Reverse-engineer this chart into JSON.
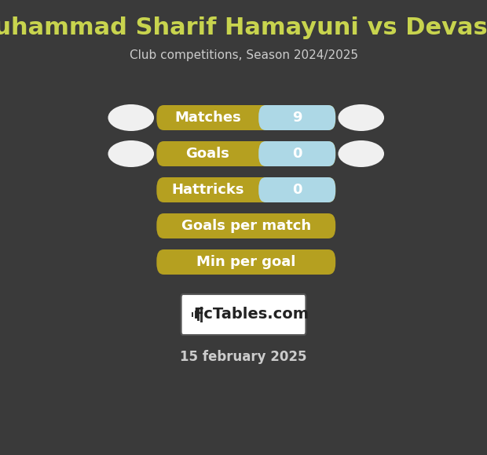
{
  "title": "Muhammad Sharif Hamayuni vs Devassy",
  "subtitle": "Club competitions, Season 2024/2025",
  "date_label": "15 february 2025",
  "background_color": "#3a3a3a",
  "title_color": "#c8d44e",
  "subtitle_color": "#cccccc",
  "date_color": "#cccccc",
  "rows": [
    {
      "label": "Matches",
      "value": "9",
      "has_value": true
    },
    {
      "label": "Goals",
      "value": "0",
      "has_value": true
    },
    {
      "label": "Hattricks",
      "value": "0",
      "has_value": true
    },
    {
      "label": "Goals per match",
      "value": "",
      "has_value": false
    },
    {
      "label": "Min per goal",
      "value": "",
      "has_value": false
    }
  ],
  "bar_bg_color": "#b5a020",
  "bar_fill_color": "#add8e6",
  "bar_text_color": "#ffffff",
  "ellipse_color": "#f0f0f0",
  "logo_text": "FcTables.com",
  "logo_box_color": "#ffffff",
  "logo_border_color": "#555555"
}
